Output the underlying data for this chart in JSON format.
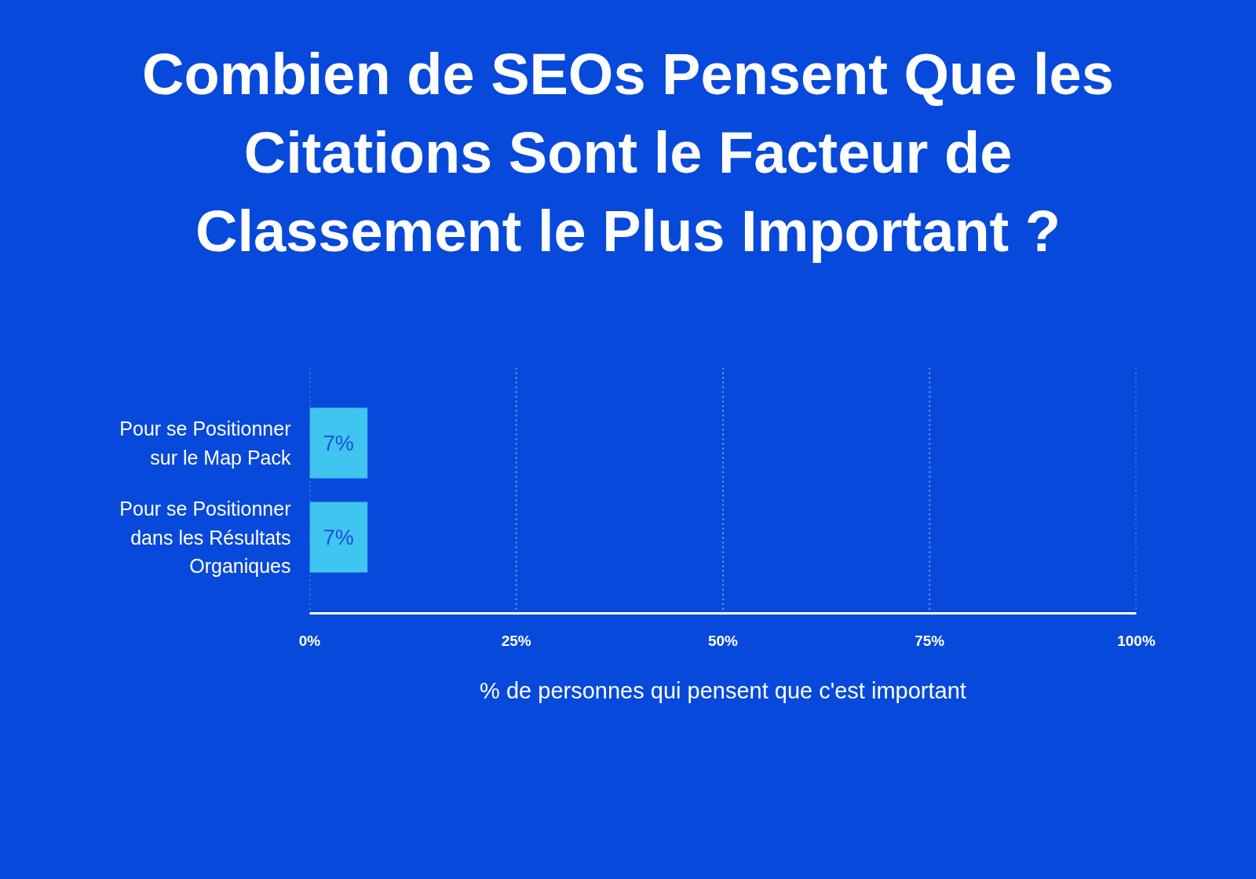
{
  "chart_data": {
    "type": "bar",
    "orientation": "horizontal",
    "title": "Combien de SEOs Pensent Que les Citations Sont le Facteur de Classement le Plus Important ?",
    "xlabel": "% de personnes qui pensent que c'est important",
    "categories": [
      "Pour se Positionner sur le Map Pack",
      "Pour se Positionner dans les Résultats Organiques"
    ],
    "values": [
      7,
      7
    ],
    "value_labels": [
      "7%",
      "7%"
    ],
    "color": "#40c4f0",
    "xlim": [
      0,
      100
    ],
    "xticks": [
      {
        "value": 0,
        "label": "0%"
      },
      {
        "value": 25,
        "label": "25%"
      },
      {
        "value": 50,
        "label": "50%"
      },
      {
        "value": 75,
        "label": "75%"
      },
      {
        "value": 100,
        "label": "100%"
      }
    ],
    "grid": "x"
  }
}
